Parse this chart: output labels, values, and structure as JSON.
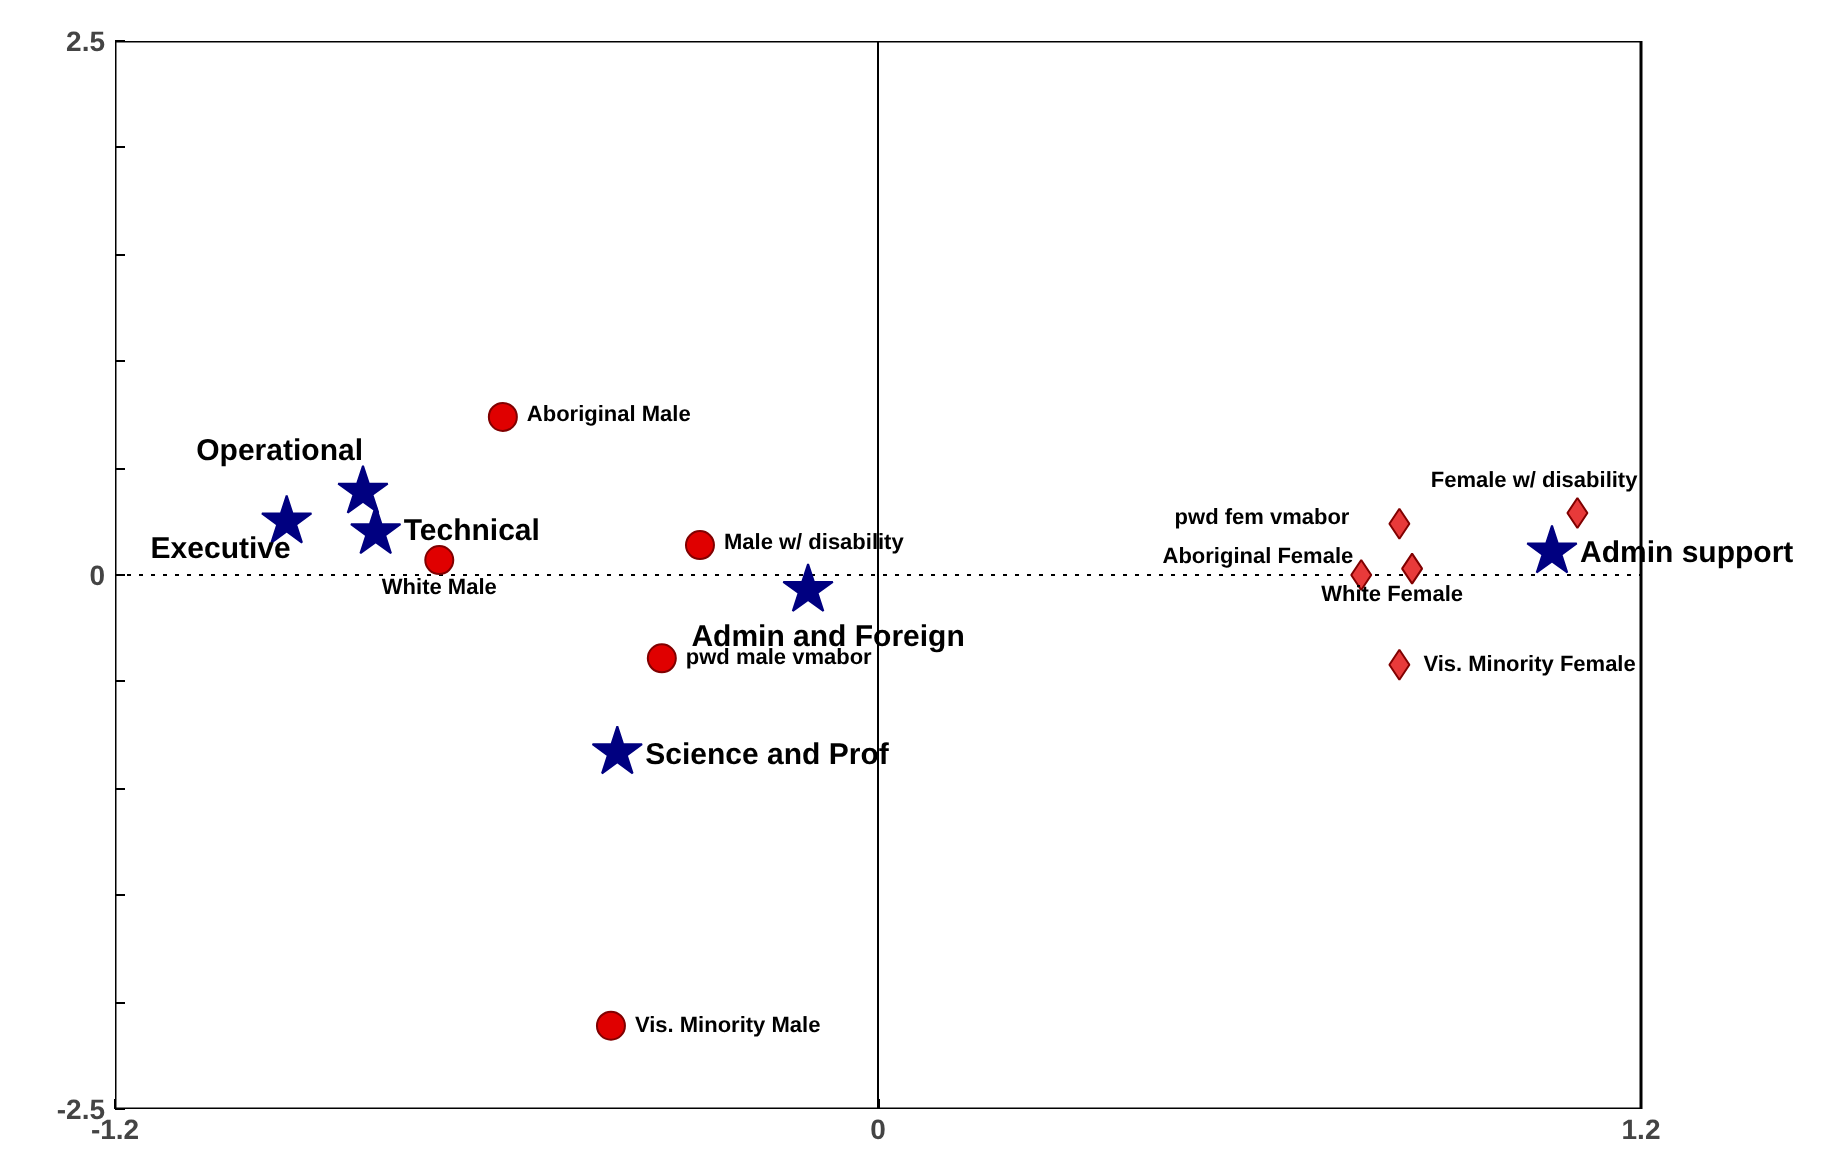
{
  "chart_data": {
    "type": "scatter",
    "xlim": [
      -1.2,
      1.2
    ],
    "ylim": [
      -2.5,
      2.5
    ],
    "xticks": [
      -1.2,
      0,
      1.2
    ],
    "yticks": [
      2.5,
      {
        "value": 2.0,
        "label": null
      },
      {
        "value": 1.5,
        "label": null
      },
      {
        "value": 1.0,
        "label": null
      },
      {
        "value": 0.5,
        "label": null
      },
      0,
      {
        "value": -0.5,
        "label": null
      },
      {
        "value": -1.0,
        "label": null
      },
      {
        "value": -1.5,
        "label": null
      },
      {
        "value": -2.0,
        "label": null
      },
      -2.5
    ],
    "grid": false,
    "series": [
      {
        "color": "#000080",
        "marker": "star",
        "x": [
          -0.93,
          -0.81,
          -0.79,
          -0.11,
          -0.41,
          1.06
        ],
        "values": [
          0.25,
          0.39,
          0.2,
          -0.07,
          -0.83,
          0.11
        ]
      },
      {
        "color": "#e00000",
        "marker": "circle",
        "x": [
          -0.59,
          -0.28,
          -0.69,
          -0.34,
          -0.42
        ],
        "values": [
          0.74,
          0.14,
          0.07,
          -0.39,
          -2.11
        ]
      },
      {
        "color": "#e83a3a",
        "marker": "diamond",
        "x": [
          0.82,
          1.1,
          0.76,
          0.84,
          0.82
        ],
        "values": [
          0.24,
          0.29,
          0.0,
          0.03,
          -0.42
        ]
      }
    ],
    "ref_lines": [
      {
        "axis": "x",
        "value": 0,
        "color": "#000000",
        "line_style": "solid"
      },
      {
        "axis": "y",
        "value": 0,
        "color": "#000000",
        "line_style": "dotted"
      }
    ],
    "annotations": [
      {
        "text": "Executive",
        "x": -0.93,
        "y": 0.25
      },
      {
        "text": "Operational",
        "x": -0.81,
        "y": 0.39
      },
      {
        "text": "Technical",
        "x": -0.79,
        "y": 0.2
      },
      {
        "text": "Admin and Foreign",
        "x": -0.11,
        "y": -0.07
      },
      {
        "text": "Science and Prof",
        "x": -0.41,
        "y": -0.83
      },
      {
        "text": "Admin support",
        "x": 1.06,
        "y": 0.11
      },
      {
        "text": "Aboriginal Male",
        "x": -0.59,
        "y": 0.74
      },
      {
        "text": "Male w/ disability",
        "x": -0.28,
        "y": 0.14
      },
      {
        "text": "White Male",
        "x": -0.69,
        "y": 0.07
      },
      {
        "text": "pwd male vmabor",
        "x": -0.34,
        "y": -0.39
      },
      {
        "text": "Vis. Minority Male",
        "x": -0.42,
        "y": -2.11
      },
      {
        "text": "pwd fem vmabor",
        "x": 0.82,
        "y": 0.24
      },
      {
        "text": "Female w/ disability",
        "x": 1.1,
        "y": 0.29
      },
      {
        "text": "Aboriginal Female",
        "x": 0.76,
        "y": 0.0
      },
      {
        "text": "White Female",
        "x": 0.84,
        "y": 0.03
      },
      {
        "text": "Vis. Minority Female",
        "x": 0.82,
        "y": -0.42
      }
    ]
  }
}
